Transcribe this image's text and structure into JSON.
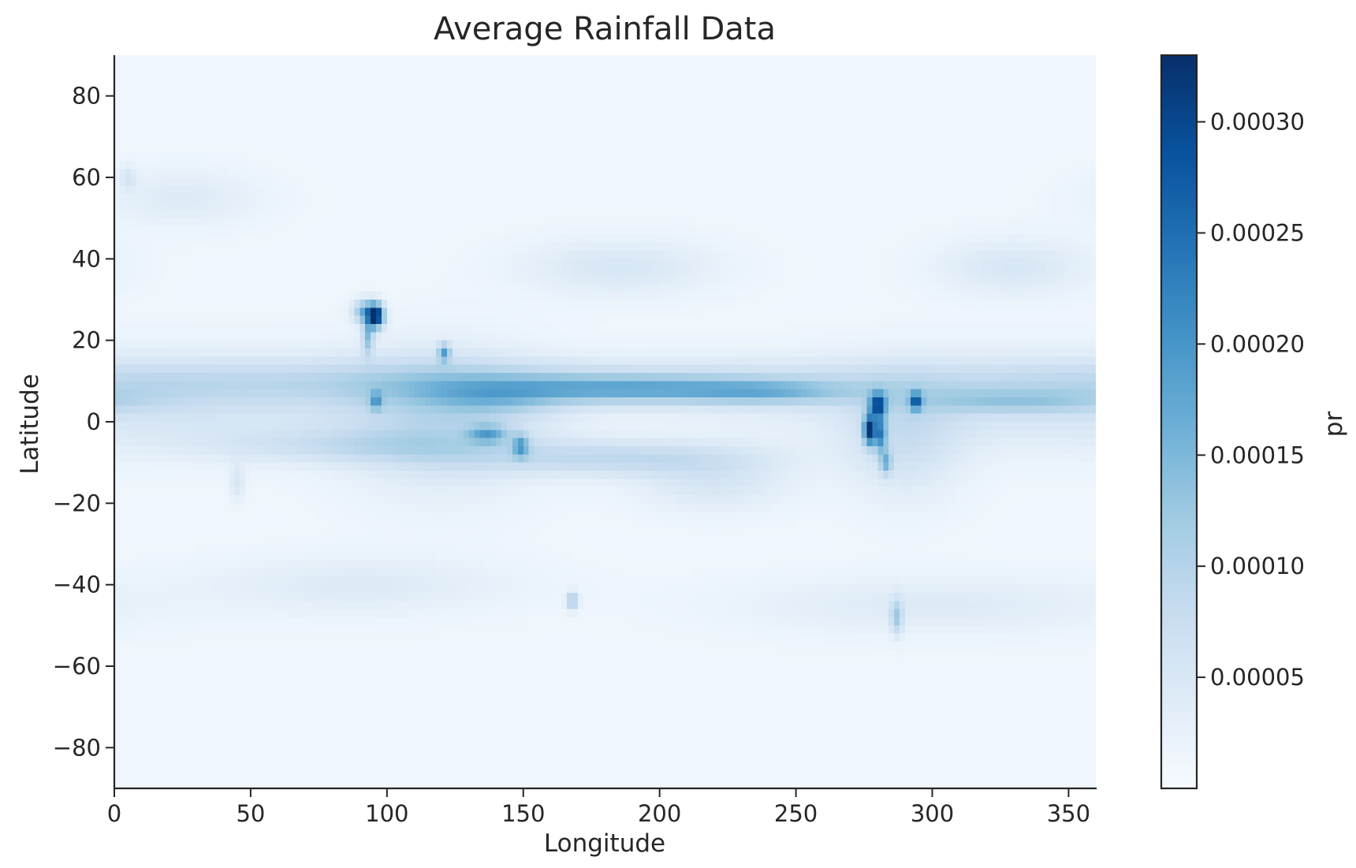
{
  "chart_data": {
    "type": "heatmap",
    "title": "Average Rainfall Data",
    "xlabel": "Longitude",
    "ylabel": "Latitude",
    "xlim": [
      0,
      360
    ],
    "ylim": [
      -90,
      90
    ],
    "x_ticks": [
      0,
      50,
      100,
      150,
      200,
      250,
      300,
      350
    ],
    "x_tick_labels": [
      "0",
      "50",
      "100",
      "150",
      "200",
      "250",
      "300",
      "350"
    ],
    "y_ticks": [
      80,
      60,
      40,
      20,
      0,
      -20,
      -40,
      -60,
      -80
    ],
    "y_tick_labels": [
      "80",
      "60",
      "40",
      "20",
      "0",
      "−20",
      "−40",
      "−60",
      "−80"
    ],
    "colormap": "Blues",
    "color_range": [
      0.0,
      0.00033
    ],
    "colorbar": {
      "label": "pr",
      "ticks": [
        5e-05,
        0.0001,
        0.00015,
        0.0002,
        0.00025,
        0.0003
      ],
      "tick_labels": [
        "0.00005",
        "0.00010",
        "0.00015",
        "0.00020",
        "0.00025",
        "0.00030"
      ]
    },
    "grid": false,
    "background_value": 1.2e-05,
    "features": [
      {
        "lon": 0,
        "lat": 5,
        "sx": 90,
        "sy": 8,
        "value": 5e-05
      },
      {
        "lon": 120,
        "lat": 10,
        "sx": 200,
        "sy": 4,
        "value": 5e-05
      },
      {
        "lon": 140,
        "lat": 5,
        "sx": 16,
        "sy": 3,
        "value": 4e-05
      },
      {
        "lon": 90,
        "lat": -6,
        "sx": 40,
        "sy": 3,
        "value": 5e-05
      },
      {
        "lon": 170,
        "lat": 8,
        "sx": 40,
        "sy": 3,
        "value": 6e-05
      },
      {
        "lon": 200,
        "lat": 8,
        "sx": 40,
        "sy": 2,
        "value": 7e-05
      },
      {
        "lon": 240,
        "lat": 7,
        "sx": 20,
        "sy": 2,
        "value": 6e-05
      },
      {
        "lon": 185,
        "lat": -9,
        "sx": 35,
        "sy": 3,
        "value": 7e-05
      },
      {
        "lon": 220,
        "lat": -15,
        "sx": 20,
        "sy": 5,
        "value": 4e-05
      },
      {
        "lon": 330,
        "lat": 5,
        "sx": 25,
        "sy": 2,
        "value": 6e-05
      },
      {
        "lon": 120,
        "lat": 0,
        "sx": 25,
        "sy": 12,
        "value": 6e-05
      },
      {
        "lon": 290,
        "lat": -5,
        "sx": 15,
        "sy": 10,
        "value": 5e-05
      },
      {
        "lon": 185,
        "lat": 38,
        "sx": 25,
        "sy": 5,
        "value": 4e-05
      },
      {
        "lon": 330,
        "lat": 38,
        "sx": 20,
        "sy": 5,
        "value": 4e-05
      },
      {
        "lon": 90,
        "lat": -40,
        "sx": 40,
        "sy": 5,
        "value": 3e-05
      },
      {
        "lon": 300,
        "lat": -45,
        "sx": 50,
        "sy": 5,
        "value": 3e-05
      },
      {
        "lon": 25,
        "lat": 55,
        "sx": 20,
        "sy": 5,
        "value": 3e-05
      },
      {
        "lon": 96,
        "lat": 26,
        "sx": 2,
        "sy": 2,
        "value": 0.00031
      },
      {
        "lon": 92,
        "lat": 27,
        "sx": 3,
        "sy": 2,
        "value": 0.00015
      },
      {
        "lon": 93,
        "lat": 21,
        "sx": 1.5,
        "sy": 3,
        "value": 0.00012
      },
      {
        "lon": 121,
        "lat": 17,
        "sx": 1.5,
        "sy": 1.5,
        "value": 0.00014
      },
      {
        "lon": 96,
        "lat": 5,
        "sx": 1.5,
        "sy": 1.5,
        "value": 0.00011
      },
      {
        "lon": 137,
        "lat": -3,
        "sx": 5,
        "sy": 1.5,
        "value": 0.00011
      },
      {
        "lon": 149,
        "lat": -6,
        "sx": 2,
        "sy": 2,
        "value": 0.00012
      },
      {
        "lon": 168,
        "lat": -44,
        "sx": 1.5,
        "sy": 1.5,
        "value": 0.00011
      },
      {
        "lon": 277,
        "lat": -2,
        "sx": 1.5,
        "sy": 2.5,
        "value": 0.00027
      },
      {
        "lon": 280,
        "lat": 4,
        "sx": 2,
        "sy": 2,
        "value": 0.00023
      },
      {
        "lon": 281,
        "lat": -3,
        "sx": 1.5,
        "sy": 3,
        "value": 0.00016
      },
      {
        "lon": 283,
        "lat": -10,
        "sx": 1.5,
        "sy": 2,
        "value": 0.00011
      },
      {
        "lon": 294,
        "lat": 5,
        "sx": 1.5,
        "sy": 1.5,
        "value": 0.00019
      },
      {
        "lon": 287,
        "lat": -48,
        "sx": 1.5,
        "sy": 3,
        "value": 9e-05
      },
      {
        "lon": 5,
        "lat": 60,
        "sx": 2,
        "sy": 2,
        "value": 4e-05
      },
      {
        "lon": 45,
        "lat": -15,
        "sx": 2,
        "sy": 3,
        "value": 4e-05
      }
    ]
  }
}
